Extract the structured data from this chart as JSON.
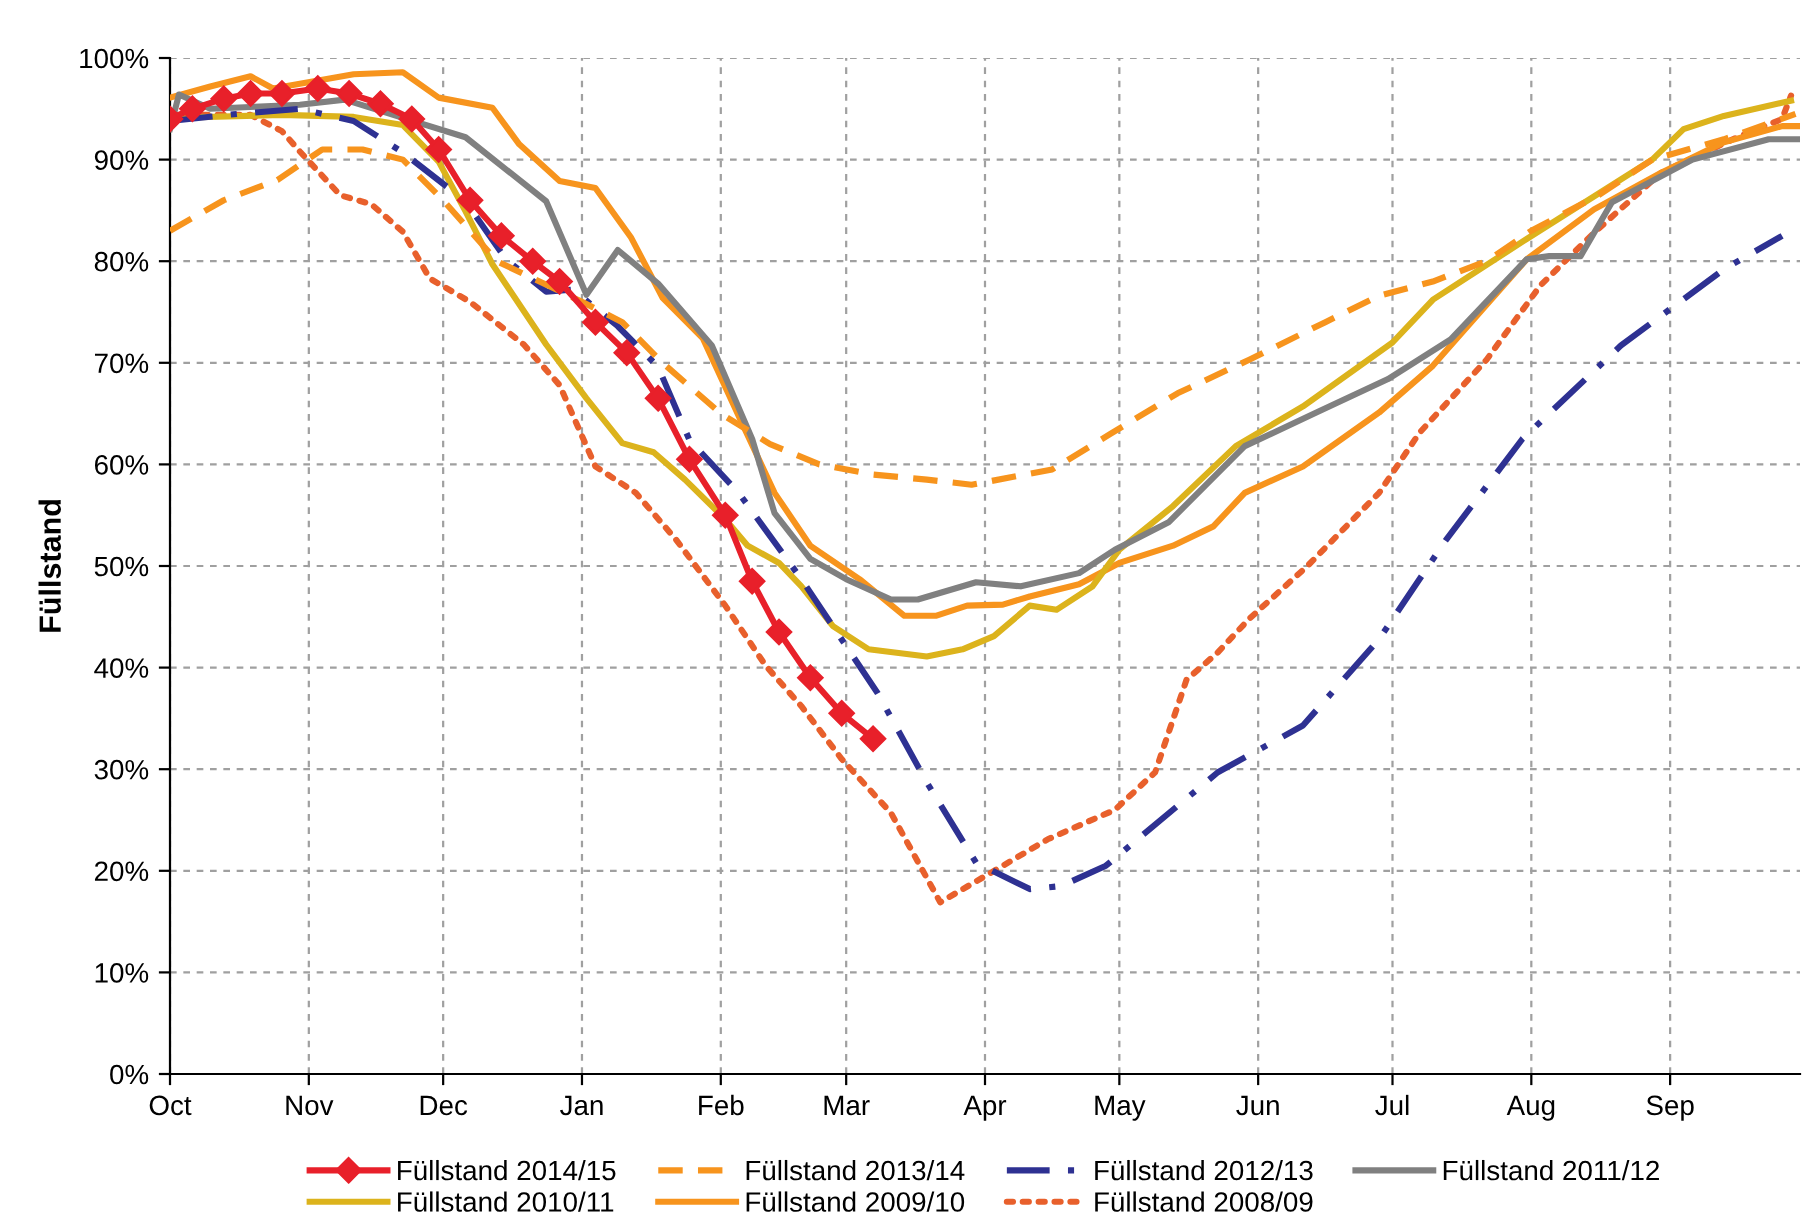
{
  "chart_data": {
    "type": "line",
    "ylabel": "Füllstand",
    "xlim": [
      "2014-10-01",
      "2015-09-30"
    ],
    "xticks": [
      {
        "value": "2014-10-01",
        "label": "Oct"
      },
      {
        "value": "2014-11-01",
        "label": "Nov"
      },
      {
        "value": "2014-12-01",
        "label": "Dec"
      },
      {
        "value": "2015-01-01",
        "label": "Jan"
      },
      {
        "value": "2015-02-01",
        "label": "Feb"
      },
      {
        "value": "2015-03-01",
        "label": "Mar"
      },
      {
        "value": "2015-04-01",
        "label": "Apr"
      },
      {
        "value": "2015-05-01",
        "label": "May"
      },
      {
        "value": "2015-06-01",
        "label": "Jun"
      },
      {
        "value": "2015-07-01",
        "label": "Jul"
      },
      {
        "value": "2015-08-01",
        "label": "Aug"
      },
      {
        "value": "2015-09-01",
        "label": "Sep"
      }
    ],
    "ylim": [
      0,
      100
    ],
    "yticks": [
      {
        "value": 0,
        "label": "0%"
      },
      {
        "value": 10,
        "label": "10%"
      },
      {
        "value": 20,
        "label": "20%"
      },
      {
        "value": 30,
        "label": "30%"
      },
      {
        "value": 40,
        "label": "40%"
      },
      {
        "value": 50,
        "label": "50%"
      },
      {
        "value": 60,
        "label": "60%"
      },
      {
        "value": 70,
        "label": "70%"
      },
      {
        "value": 80,
        "label": "80%"
      },
      {
        "value": 90,
        "label": "90%"
      },
      {
        "value": 100,
        "label": "100%"
      }
    ],
    "grid": true,
    "legend": "bottom",
    "series": [
      {
        "name": "Füllstand 2014/15",
        "color": "#e8202a",
        "marker": "diamond",
        "line_style": "solid",
        "x": [
          "2014-10-01",
          "2014-10-06",
          "2014-10-13",
          "2014-10-19",
          "2014-10-26",
          "2014-11-03",
          "2014-11-10",
          "2014-11-17",
          "2014-11-24",
          "2014-11-30",
          "2014-12-07",
          "2014-12-14",
          "2014-12-21",
          "2014-12-27",
          "2015-01-04",
          "2015-01-11",
          "2015-01-18",
          "2015-01-25",
          "2015-02-02",
          "2015-02-08",
          "2015-02-14",
          "2015-02-21",
          "2015-02-28",
          "2015-03-07"
        ],
        "values": [
          94,
          95,
          96,
          96.5,
          96.5,
          97,
          96.5,
          95.5,
          94,
          91,
          86,
          82.5,
          80,
          78,
          74,
          71,
          66.5,
          60.5,
          55,
          48.5,
          43.5,
          39,
          35.5,
          33
        ]
      },
      {
        "name": "Füllstand 2013/14",
        "color": "#f7941d",
        "marker": "none",
        "line_style": "dashed",
        "x": [
          "2014-10-01",
          "2014-10-13",
          "2014-10-25",
          "2014-11-04",
          "2014-11-13",
          "2014-11-22",
          "2014-12-01",
          "2014-12-13",
          "2015-01-01",
          "2015-01-10",
          "2015-01-19",
          "2015-02-01",
          "2015-02-12",
          "2015-02-23",
          "2015-03-07",
          "2015-03-19",
          "2015-03-29",
          "2015-04-16",
          "2015-04-29",
          "2015-05-14",
          "2015-05-30",
          "2015-06-16",
          "2015-06-28",
          "2015-07-10",
          "2015-07-22",
          "2015-08-01",
          "2015-08-16",
          "2015-08-28",
          "2015-09-13",
          "2015-09-29"
        ],
        "values": [
          83,
          86,
          88,
          91,
          91,
          90,
          86,
          80,
          76,
          74,
          70,
          65,
          62,
          60,
          59,
          58.5,
          58,
          59.5,
          63,
          67,
          70.3,
          74,
          76.6,
          78,
          80,
          83,
          86.5,
          90,
          92,
          94.5
        ]
      },
      {
        "name": "Füllstand 2012/13",
        "color": "#2e3192",
        "marker": "none",
        "line_style": "dashdot",
        "x": [
          "2014-10-01",
          "2014-10-16",
          "2014-10-30",
          "2014-11-11",
          "2014-11-22",
          "2014-12-06",
          "2014-12-15",
          "2014-12-24",
          "2014-12-30",
          "2015-01-09",
          "2015-01-18",
          "2015-01-25",
          "2015-02-05",
          "2015-02-19",
          "2015-03-08",
          "2015-03-19",
          "2015-03-30",
          "2015-04-11",
          "2015-04-18",
          "2015-04-28",
          "2015-05-23",
          "2015-06-11",
          "2015-06-28",
          "2015-07-13",
          "2015-07-30",
          "2015-08-21",
          "2015-09-13",
          "2015-09-26"
        ],
        "values": [
          93.8,
          94.5,
          95,
          93.8,
          90.7,
          85.9,
          80.2,
          77,
          77.2,
          73.6,
          69.6,
          62.4,
          57.2,
          48.7,
          37.5,
          28.7,
          20.8,
          18.2,
          18.5,
          20.5,
          29.7,
          34.3,
          42.8,
          52.6,
          62.5,
          71.7,
          79.2,
          82.5
        ]
      },
      {
        "name": "Füllstand 2011/12",
        "color": "#808080",
        "marker": "none",
        "line_style": "solid",
        "x": [
          "2014-10-01",
          "2014-10-03",
          "2014-10-10",
          "2014-10-30",
          "2014-11-09",
          "2014-11-22",
          "2014-12-06",
          "2014-12-24",
          "2015-01-02",
          "2015-01-09",
          "2015-01-18",
          "2015-01-30",
          "2015-02-08",
          "2015-02-13",
          "2015-02-21",
          "2015-03-01",
          "2015-03-11",
          "2015-03-17",
          "2015-03-30",
          "2015-04-09",
          "2015-04-22",
          "2015-04-30",
          "2015-05-12",
          "2015-05-29",
          "2015-06-14",
          "2015-06-30",
          "2015-07-14",
          "2015-07-31",
          "2015-08-05",
          "2015-08-12",
          "2015-08-19",
          "2015-09-06",
          "2015-09-23",
          "2015-09-30"
        ],
        "values": [
          93,
          96.4,
          95,
          95.4,
          95.9,
          94.1,
          92.2,
          85.9,
          76.7,
          81.1,
          77.8,
          71.7,
          62.5,
          55.2,
          50.7,
          48.7,
          46.7,
          46.7,
          48.4,
          48,
          49.3,
          51.6,
          54.3,
          61.8,
          65.1,
          68.4,
          72.3,
          80.2,
          80.5,
          80.5,
          85.8,
          90,
          92,
          92
        ]
      },
      {
        "name": "Füllstand 2010/11",
        "color": "#dcb31c",
        "marker": "none",
        "line_style": "solid",
        "x": [
          "2014-10-01",
          "2014-10-26",
          "2014-11-11",
          "2014-11-22",
          "2014-11-30",
          "2014-12-06",
          "2014-12-12",
          "2014-12-24",
          "2015-01-02",
          "2015-01-10",
          "2015-01-17",
          "2015-01-24",
          "2015-02-02",
          "2015-02-07",
          "2015-02-14",
          "2015-02-19",
          "2015-02-26",
          "2015-03-06",
          "2015-03-19",
          "2015-03-27",
          "2015-04-03",
          "2015-04-11",
          "2015-04-17",
          "2015-04-25",
          "2015-05-01",
          "2015-05-13",
          "2015-05-27",
          "2015-06-11",
          "2015-07-01",
          "2015-07-10",
          "2015-07-31",
          "2015-08-28",
          "2015-09-04",
          "2015-09-13",
          "2015-09-28"
        ],
        "values": [
          94.1,
          94.4,
          94.2,
          93.4,
          89.8,
          84.9,
          79.7,
          71.8,
          66.5,
          62.1,
          61.2,
          58.5,
          54.6,
          52,
          50.3,
          48,
          44.1,
          41.8,
          41.1,
          41.8,
          43.1,
          46.1,
          45.7,
          48,
          51.6,
          55.9,
          61.8,
          65.7,
          72,
          76.2,
          82.2,
          90,
          93,
          94.3,
          95.8
        ]
      },
      {
        "name": "Füllstand 2009/10",
        "color": "#f7941d",
        "marker": "none",
        "line_style": "solid",
        "x": [
          "2014-10-01",
          "2014-10-10",
          "2014-10-19",
          "2014-10-24",
          "2014-11-11",
          "2014-11-22",
          "2014-11-30",
          "2014-12-12",
          "2014-12-18",
          "2014-12-27",
          "2015-01-04",
          "2015-01-12",
          "2015-01-19",
          "2015-01-28",
          "2015-02-06",
          "2015-02-13",
          "2015-02-21",
          "2015-03-04",
          "2015-03-14",
          "2015-03-21",
          "2015-03-28",
          "2015-04-05",
          "2015-04-11",
          "2015-04-22",
          "2015-05-01",
          "2015-05-13",
          "2015-05-22",
          "2015-05-29",
          "2015-06-11",
          "2015-06-28",
          "2015-07-10",
          "2015-07-31",
          "2015-08-15",
          "2015-08-30",
          "2015-09-13",
          "2015-09-26",
          "2015-09-30"
        ],
        "values": [
          96.1,
          97.2,
          98.2,
          97,
          98.4,
          98.6,
          96.1,
          95.1,
          91.5,
          87.9,
          87.2,
          82.3,
          76.4,
          72.4,
          63.8,
          57.2,
          52,
          48.7,
          45.1,
          45.1,
          46.1,
          46.2,
          47,
          48.2,
          50.3,
          52,
          53.9,
          57.2,
          59.8,
          65.1,
          69.7,
          80.2,
          85.1,
          88.7,
          91.7,
          93.3,
          93.3
        ]
      },
      {
        "name": "Füllstand 2008/09",
        "color": "#e8602c",
        "marker": "none",
        "line_style": "dotted",
        "x": [
          "2014-10-01",
          "2014-10-19",
          "2014-10-26",
          "2014-10-30",
          "2014-11-08",
          "2014-11-15",
          "2014-11-22",
          "2014-11-28",
          "2014-12-07",
          "2014-12-19",
          "2014-12-27",
          "2015-01-04",
          "2015-01-13",
          "2015-01-22",
          "2015-02-02",
          "2015-02-11",
          "2015-02-19",
          "2015-02-28",
          "2015-03-11",
          "2015-03-22",
          "2015-04-05",
          "2015-04-15",
          "2015-04-30",
          "2015-05-09",
          "2015-05-16",
          "2015-05-23",
          "2015-05-30",
          "2015-06-12",
          "2015-06-28",
          "2015-07-07",
          "2015-07-22",
          "2015-08-03",
          "2015-08-15",
          "2015-08-30",
          "2015-09-15",
          "2015-09-26",
          "2015-09-28"
        ],
        "values": [
          94.4,
          94.4,
          92.8,
          90.8,
          86.5,
          85.6,
          82.9,
          78.3,
          76,
          71.8,
          67.8,
          59.8,
          57.2,
          52.6,
          46.1,
          40.2,
          36.2,
          31,
          25.7,
          16.9,
          20.5,
          23.1,
          26,
          29.7,
          38.8,
          41.5,
          44.8,
          50,
          57.2,
          63.1,
          70.3,
          77.6,
          82.8,
          88.7,
          92,
          94,
          96.3
        ]
      }
    ]
  }
}
